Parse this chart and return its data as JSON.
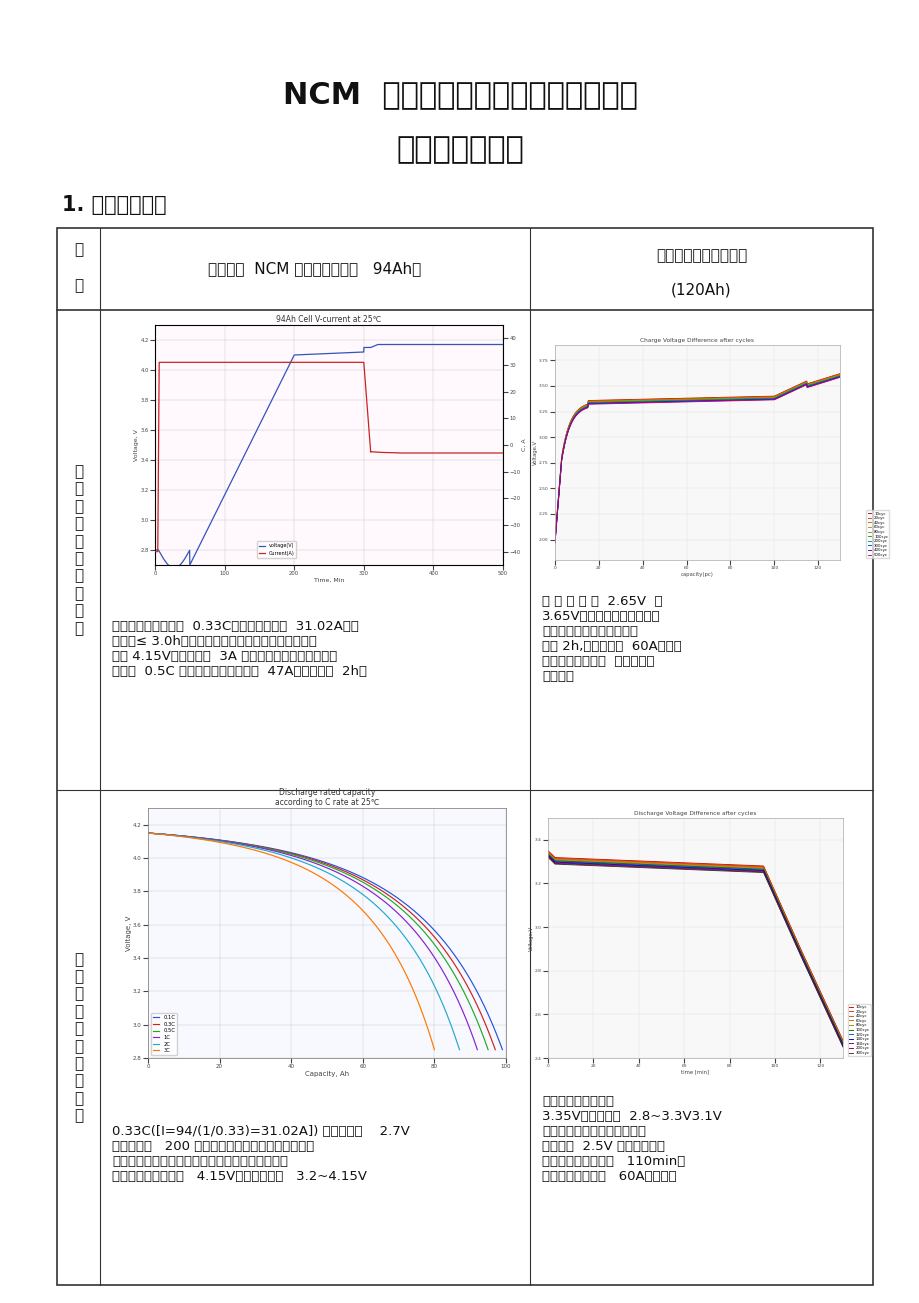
{
  "title_line1": "NCM  三元锂电池与磷酸铁锂电池充放",
  "title_line2": "电特性曲线比较",
  "section_title": "1. 性能参数比较",
  "param_label": "参\n\n数",
  "col_header_mid": "阳光三星  NCM 三元电池（电芯   94Ah）",
  "col_header_right1": "宁德时代磷酸铁锂电池",
  "col_header_right2": "(120Ah)",
  "row1_label": "单\n体\n电\n芯\n充\n电\n特\n性\n曲\n线",
  "row1_mid_text": "推荐标准的充电方式  0.33C（充电电流为：  31.02A）充\n电时间≤ 3.0h，先恒流充电转恒压限流充电，最高充\n电至 4.15V。电流小于  3A 默认充满，退出充电模式。\n也支持  0.5C 快充电（充电电流为：  47A）时间小于  2h。",
  "row1_right_text": "从 最 低 电 压  2.65V  至\n3.65V（电池已经充满）之间\n充速率特别快充电过程耗时\n不足 2h,充电电流为  60A。（此\n曲线与前者对比，  不能明确表\n征含义）",
  "row2_label": "单\n体\n电\n芯\n放\n电\n特\n性\n曲\n线",
  "row2_mid_text": "0.33C([I=94/(1/0.33)=31.02A]) 恒流放电至    2.7V\n终止可持续   200 分钟。放电倍率越小放出的实际容\n量就越多，因大倍率放电时部分能量以热能形式损\n失。充满电开路电压   4.15V，放电平台在   3.2~4.15V",
  "row2_right_text": "满充电开路电压约为\n3.35V，放电平台  2.8~3.3V3.1V\n时放电速度开始急剧加快直至\n电压约为  2.5V 时电池放电结\n束，整个放电过程约   110min，\n放电电流大小约为   60A。（此曲",
  "bg_color": "#ffffff"
}
